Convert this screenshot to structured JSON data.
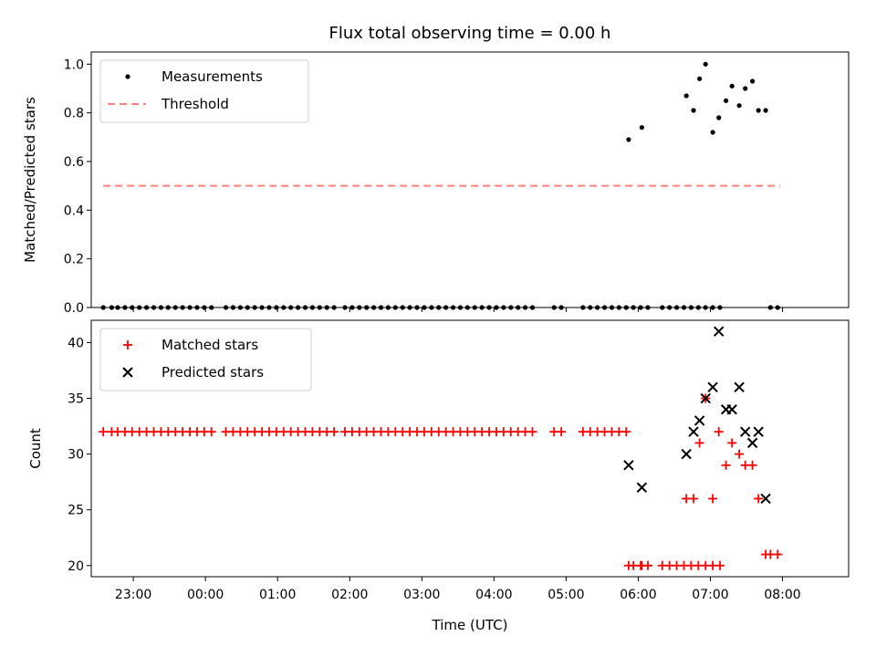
{
  "chart_data": {
    "title": "Flux total observing time = 0.00 h",
    "xlabel": "Time (UTC)",
    "x_ticks": [
      "23:00",
      "00:00",
      "01:00",
      "02:00",
      "03:00",
      "04:00",
      "05:00",
      "06:00",
      "07:00",
      "08:00"
    ],
    "panels": [
      {
        "type": "scatter",
        "ylabel": "Matched/Predicted stars",
        "ylim": [
          0,
          1.05
        ],
        "y_ticks": [
          "0.0",
          "0.2",
          "0.4",
          "0.6",
          "0.8",
          "1.0"
        ],
        "legend_position": "upper-left",
        "series": [
          {
            "name": "Measurements",
            "marker": "dot",
            "color": "#000000",
            "x": [
              "22:35",
              "22:42",
              "22:47",
              "22:53",
              "22:59",
              "23:05",
              "23:11",
              "23:17",
              "23:23",
              "23:29",
              "23:35",
              "23:41",
              "23:47",
              "23:53",
              "23:59",
              "00:05",
              "00:17",
              "00:23",
              "00:29",
              "00:35",
              "00:41",
              "00:47",
              "00:53",
              "00:59",
              "01:05",
              "01:11",
              "01:17",
              "01:23",
              "01:29",
              "01:35",
              "01:41",
              "01:47",
              "01:56",
              "02:02",
              "02:08",
              "02:14",
              "02:20",
              "02:26",
              "02:32",
              "02:38",
              "02:44",
              "02:50",
              "02:56",
              "03:02",
              "03:08",
              "03:14",
              "03:20",
              "03:26",
              "03:32",
              "03:38",
              "03:44",
              "03:50",
              "03:56",
              "04:02",
              "04:08",
              "04:14",
              "04:20",
              "04:26",
              "04:32",
              "04:50",
              "04:56",
              "05:14",
              "05:20",
              "05:26",
              "05:32",
              "05:38",
              "05:44",
              "05:50",
              "05:56",
              "06:02",
              "06:08",
              "06:20",
              "06:26",
              "06:32",
              "06:38",
              "06:44",
              "06:50",
              "06:56",
              "07:02",
              "07:08",
              "07:50",
              "07:56"
            ],
            "y": [
              0,
              0,
              0,
              0,
              0,
              0,
              0,
              0,
              0,
              0,
              0,
              0,
              0,
              0,
              0,
              0,
              0,
              0,
              0,
              0,
              0,
              0,
              0,
              0,
              0,
              0,
              0,
              0,
              0,
              0,
              0,
              0,
              0,
              0,
              0,
              0,
              0,
              0,
              0,
              0,
              0,
              0,
              0,
              0,
              0,
              0,
              0,
              0,
              0,
              0,
              0,
              0,
              0,
              0,
              0,
              0,
              0,
              0,
              0,
              0,
              0,
              0,
              0,
              0,
              0,
              0,
              0,
              0,
              0,
              0,
              0,
              0,
              0,
              0,
              0,
              0,
              0,
              0,
              0,
              0,
              0,
              0
            ]
          },
          {
            "name": "",
            "marker": "dot",
            "color": "#000000",
            "x": [
              "05:52",
              "06:03",
              "06:40",
              "06:46",
              "06:51",
              "06:56",
              "07:02",
              "07:07",
              "07:13",
              "07:18",
              "07:24",
              "07:29",
              "07:35",
              "07:40",
              "07:46"
            ],
            "y": [
              0.69,
              0.74,
              0.87,
              0.81,
              0.94,
              1.0,
              0.72,
              0.78,
              0.85,
              0.91,
              0.83,
              0.9,
              0.93,
              0.81,
              0.81
            ]
          },
          {
            "name": "Threshold",
            "line": "dashed",
            "color": "#ff7f7f",
            "x": [
              "22:35",
              "07:58"
            ],
            "y": [
              0.5,
              0.5
            ]
          }
        ]
      },
      {
        "type": "scatter",
        "ylabel": "Count",
        "ylim": [
          19,
          42
        ],
        "y_ticks": [
          "20",
          "25",
          "30",
          "35",
          "40"
        ],
        "legend_position": "upper-left",
        "series": [
          {
            "name": "Matched stars",
            "marker": "plus",
            "color": "#ff0000",
            "x": [
              "22:35",
              "22:42",
              "22:47",
              "22:53",
              "22:59",
              "23:05",
              "23:11",
              "23:17",
              "23:23",
              "23:29",
              "23:35",
              "23:41",
              "23:47",
              "23:53",
              "23:59",
              "00:05",
              "00:17",
              "00:23",
              "00:29",
              "00:35",
              "00:41",
              "00:47",
              "00:53",
              "00:59",
              "01:05",
              "01:11",
              "01:17",
              "01:23",
              "01:29",
              "01:35",
              "01:41",
              "01:47",
              "01:56",
              "02:02",
              "02:08",
              "02:14",
              "02:20",
              "02:26",
              "02:32",
              "02:38",
              "02:44",
              "02:50",
              "02:56",
              "03:02",
              "03:08",
              "03:14",
              "03:20",
              "03:26",
              "03:32",
              "03:38",
              "03:44",
              "03:50",
              "03:56",
              "04:02",
              "04:08",
              "04:14",
              "04:20",
              "04:26",
              "04:32",
              "04:50",
              "04:56",
              "05:14",
              "05:20",
              "05:26",
              "05:32",
              "05:38",
              "05:44",
              "05:50",
              "05:56",
              "06:02",
              "06:08",
              "06:20",
              "06:26",
              "06:32",
              "06:38",
              "06:44",
              "06:50",
              "06:56",
              "07:02",
              "07:08",
              "07:50",
              "07:56",
              "05:52",
              "06:03",
              "06:40",
              "06:46",
              "06:51",
              "06:56",
              "07:02",
              "07:07",
              "07:13",
              "07:18",
              "07:24",
              "07:29",
              "07:35",
              "07:40",
              "07:46"
            ],
            "y": [
              32,
              32,
              32,
              32,
              32,
              32,
              32,
              32,
              32,
              32,
              32,
              32,
              32,
              32,
              32,
              32,
              32,
              32,
              32,
              32,
              32,
              32,
              32,
              32,
              32,
              32,
              32,
              32,
              32,
              32,
              32,
              32,
              32,
              32,
              32,
              32,
              32,
              32,
              32,
              32,
              32,
              32,
              32,
              32,
              32,
              32,
              32,
              32,
              32,
              32,
              32,
              32,
              32,
              32,
              32,
              32,
              32,
              32,
              32,
              32,
              32,
              32,
              32,
              32,
              32,
              32,
              32,
              32,
              20,
              20,
              20,
              20,
              20,
              20,
              20,
              20,
              20,
              20,
              20,
              20,
              21,
              21,
              20,
              20,
              26,
              26,
              31,
              35,
              26,
              32,
              29,
              31,
              30,
              29,
              29,
              26,
              21
            ]
          },
          {
            "name": "Predicted stars",
            "marker": "x",
            "color": "#000000",
            "x": [
              "05:52",
              "06:03",
              "06:40",
              "06:46",
              "06:51",
              "06:56",
              "07:02",
              "07:07",
              "07:13",
              "07:18",
              "07:24",
              "07:29",
              "07:35",
              "07:40",
              "07:46"
            ],
            "y": [
              29,
              27,
              30,
              32,
              33,
              35,
              36,
              41,
              34,
              34,
              36,
              32,
              31,
              32,
              26
            ]
          }
        ]
      }
    ]
  }
}
